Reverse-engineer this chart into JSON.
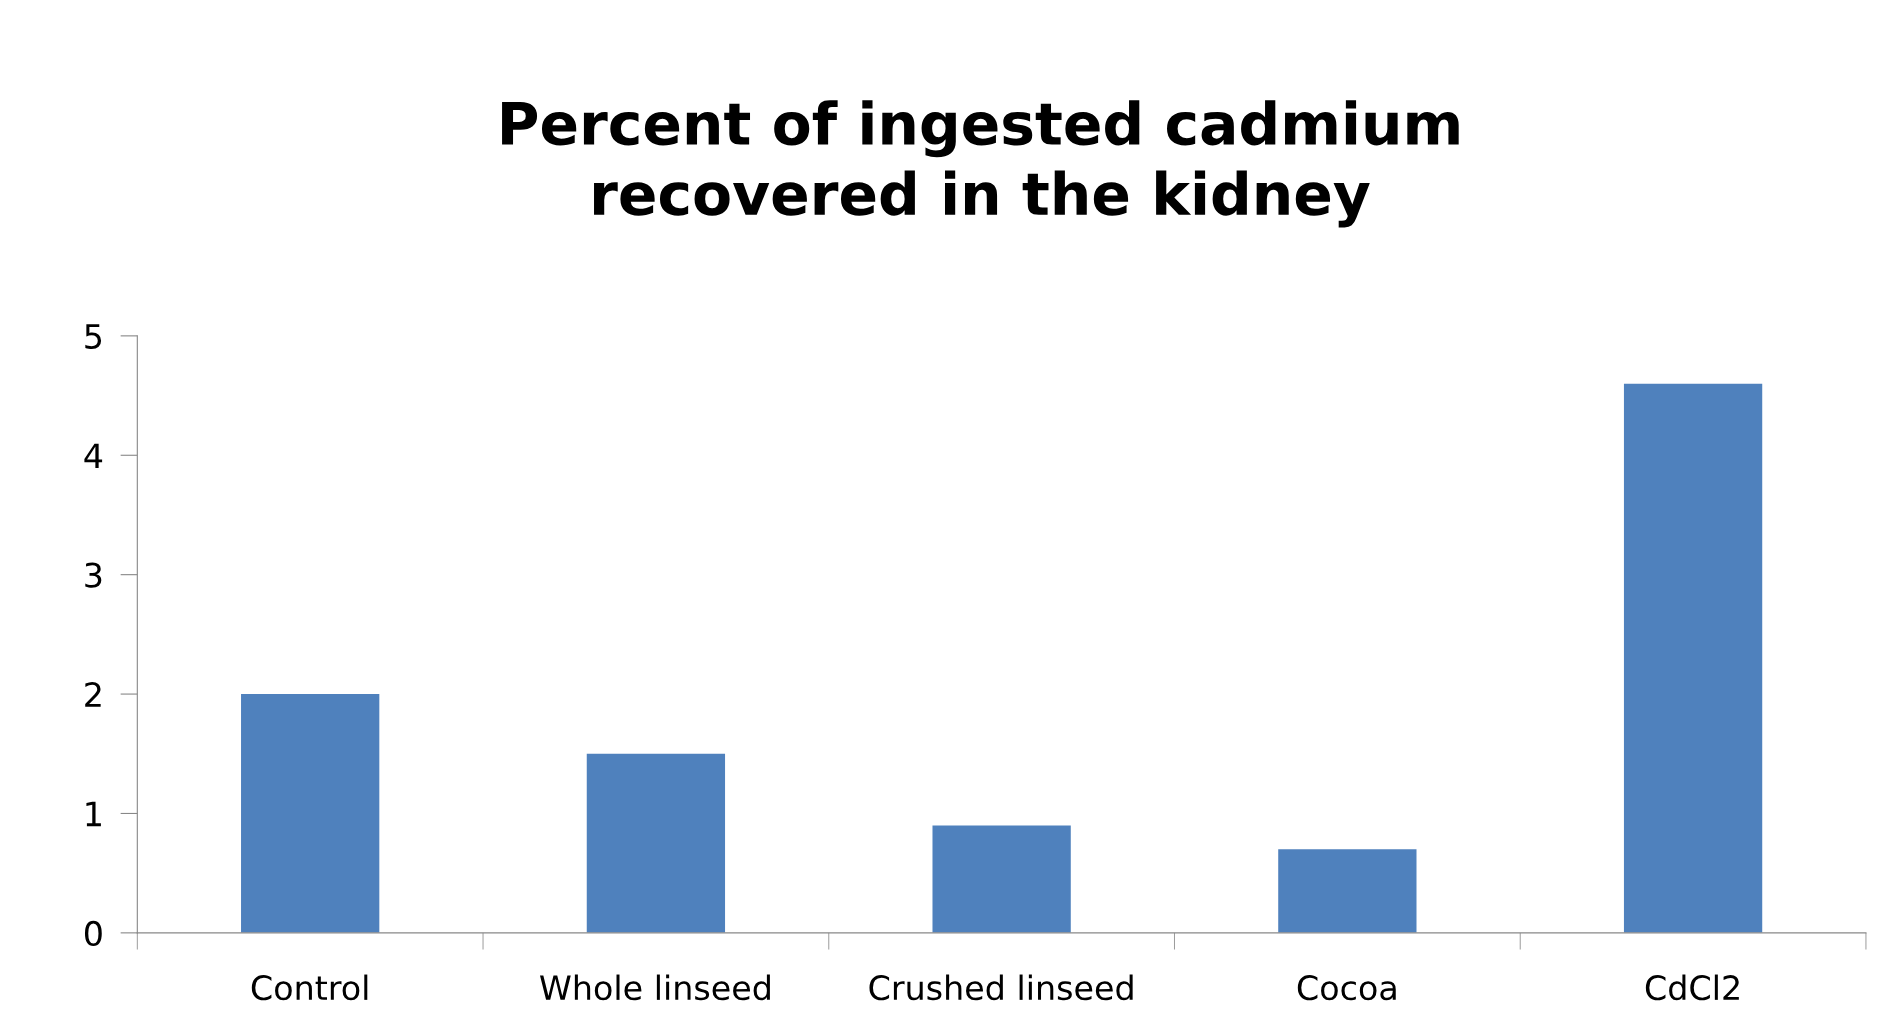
{
  "chart_data": {
    "type": "bar",
    "title": "Percent of ingested cadmium\nrecovered in the kidney",
    "categories": [
      "Control",
      "Whole linseed",
      "Crushed linseed",
      "Cocoa",
      "CdCl2"
    ],
    "values": [
      2.0,
      1.5,
      0.9,
      0.7,
      4.6
    ],
    "color": "#4f81bd",
    "ylim": [
      0,
      5
    ],
    "yticks": [
      0,
      1,
      2,
      3,
      4,
      5
    ],
    "grid": false,
    "legend": false
  }
}
